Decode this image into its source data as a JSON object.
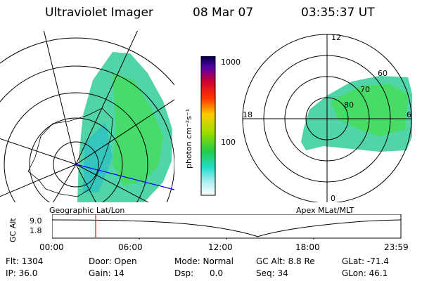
{
  "header": {
    "instrument": "Ultraviolet Imager",
    "date": "08 Mar 07",
    "time": "03:35:37 UT"
  },
  "colorbar": {
    "label": "photon cm⁻²s⁻¹",
    "ticks": [
      "1000",
      "100"
    ]
  },
  "geo_panel": {
    "caption": "Geographic Lat/Lon"
  },
  "polar_panel": {
    "caption": "Apex  MLat/MLT",
    "mlt_labels": {
      "top": "12",
      "left": "18",
      "right": "6",
      "bottom": "0"
    },
    "lat_labels": [
      "60",
      "70",
      "80"
    ]
  },
  "altitude_plot": {
    "ylabel": "GC Alt",
    "yticks": [
      "9.0",
      "1.8"
    ],
    "xticks": [
      "00:00",
      "06:00",
      "12:00",
      "18:00",
      "23:59"
    ]
  },
  "stats": {
    "flt": "Flt: 1304",
    "ip": "IP: 36.0",
    "door": "Door: Open",
    "gain": "Gain: 14",
    "mode": "Mode: Normal",
    "dsp_label": "Dsp:",
    "dsp_value": "0.0",
    "gc_alt": "GC Alt: 8.8 Re",
    "seq": "Seq: 34",
    "glat": "GLat: -71.4",
    "glon": "GLon:  46.1"
  }
}
